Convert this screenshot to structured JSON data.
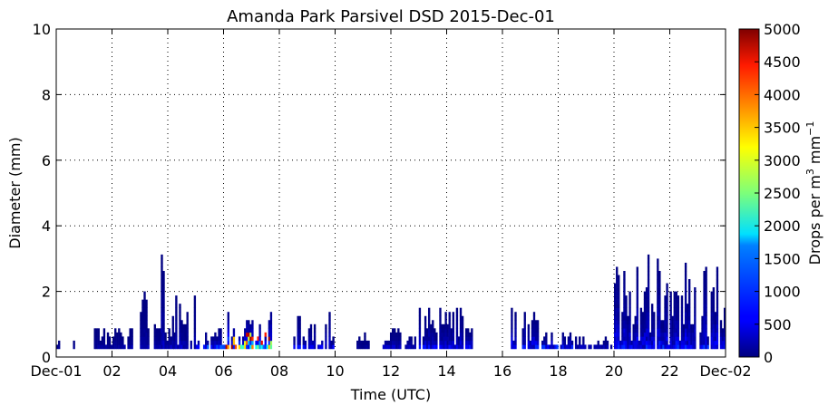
{
  "chart_data": {
    "type": "heatmap",
    "title": "Amanda Park Parsivel DSD 2015-Dec-01",
    "xlabel": "Time (UTC)",
    "ylabel": "Diameter (mm)",
    "xlim": [
      0,
      24
    ],
    "ylim": [
      0,
      10
    ],
    "x_ticks": [
      {
        "v": 0,
        "label": "Dec-01"
      },
      {
        "v": 2,
        "label": "02"
      },
      {
        "v": 4,
        "label": "04"
      },
      {
        "v": 6,
        "label": "06"
      },
      {
        "v": 8,
        "label": "08"
      },
      {
        "v": 10,
        "label": "10"
      },
      {
        "v": 12,
        "label": "12"
      },
      {
        "v": 14,
        "label": "14"
      },
      {
        "v": 16,
        "label": "16"
      },
      {
        "v": 18,
        "label": "18"
      },
      {
        "v": 20,
        "label": "20"
      },
      {
        "v": 22,
        "label": "22"
      },
      {
        "v": 24,
        "label": "Dec-02"
      }
    ],
    "y_ticks": [
      {
        "v": 0,
        "label": "0"
      },
      {
        "v": 2,
        "label": "2"
      },
      {
        "v": 4,
        "label": "4"
      },
      {
        "v": 6,
        "label": "6"
      },
      {
        "v": 8,
        "label": "8"
      },
      {
        "v": 10,
        "label": "10"
      }
    ],
    "grid": true,
    "colorbar": {
      "label_main": "Drops per m",
      "label_sup1": "3",
      "label_mid": " mm",
      "label_sup2": "−1",
      "min": 0,
      "max": 5000,
      "ticks": [
        {
          "v": 0,
          "label": "0"
        },
        {
          "v": 500,
          "label": "500"
        },
        {
          "v": 1000,
          "label": "1000"
        },
        {
          "v": 1500,
          "label": "1500"
        },
        {
          "v": 2000,
          "label": "2000"
        },
        {
          "v": 2500,
          "label": "2500"
        },
        {
          "v": 3000,
          "label": "3000"
        },
        {
          "v": 3500,
          "label": "3500"
        },
        {
          "v": 4000,
          "label": "4000"
        },
        {
          "v": 4500,
          "label": "4500"
        },
        {
          "v": 5000,
          "label": "5000"
        }
      ],
      "colormap": "jet"
    },
    "rain_events": [
      {
        "start": 0.0,
        "end": 0.1,
        "dmax": 0.6,
        "intensity": 60
      },
      {
        "start": 0.6,
        "end": 0.65,
        "dmax": 0.6,
        "intensity": 60
      },
      {
        "start": 1.35,
        "end": 2.75,
        "dmax": 0.9,
        "intensity": 150
      },
      {
        "start": 3.0,
        "end": 3.3,
        "dmax": 2.3,
        "intensity": 220
      },
      {
        "start": 3.5,
        "end": 3.75,
        "dmax": 1.5,
        "intensity": 200
      },
      {
        "start": 3.75,
        "end": 4.2,
        "dmax": 3.1,
        "intensity": 300
      },
      {
        "start": 4.2,
        "end": 5.0,
        "dmax": 1.9,
        "intensity": 300
      },
      {
        "start": 5.0,
        "end": 6.0,
        "dmax": 0.8,
        "intensity": 700
      },
      {
        "start": 6.0,
        "end": 7.7,
        "dmax": 1.3,
        "intensity": 1600
      },
      {
        "start": 8.5,
        "end": 10.0,
        "dmax": 1.5,
        "intensity": 500
      },
      {
        "start": 10.7,
        "end": 11.2,
        "dmax": 0.8,
        "intensity": 100
      },
      {
        "start": 11.7,
        "end": 12.9,
        "dmax": 0.8,
        "intensity": 300
      },
      {
        "start": 13.0,
        "end": 14.9,
        "dmax": 1.5,
        "intensity": 450
      },
      {
        "start": 16.3,
        "end": 17.3,
        "dmax": 1.5,
        "intensity": 600
      },
      {
        "start": 17.4,
        "end": 18.6,
        "dmax": 0.8,
        "intensity": 600
      },
      {
        "start": 18.6,
        "end": 19.9,
        "dmax": 0.6,
        "intensity": 200
      },
      {
        "start": 20.0,
        "end": 24.0,
        "dmax": 3.1,
        "intensity": 600
      }
    ]
  }
}
